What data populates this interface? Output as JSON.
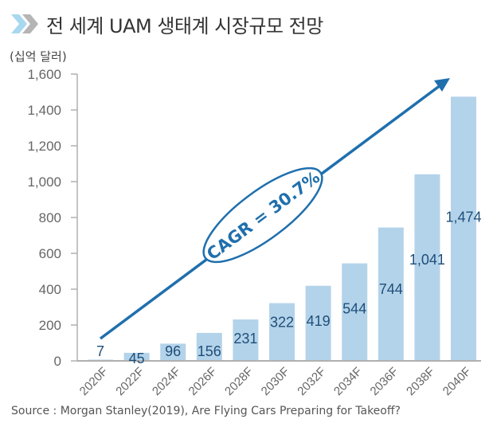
{
  "header": {
    "title": "전 세계 UAM 생태계 시장규모 전망",
    "icon": "double-chevron-right-icon"
  },
  "unit_label": "(십억 달러)",
  "source": "Source : Morgan Stanley(2019), Are Flying Cars Preparing for Takeoff?",
  "colors": {
    "bar": "#b3d3ea",
    "value_text": "#1f4e79",
    "arrow": "#1f6fad",
    "axis": "#b0b0b0",
    "chevron_light": "#a8d8f0",
    "chevron_dark": "#b5b5b5"
  },
  "chart_data": {
    "type": "bar",
    "title": "전 세계 UAM 생태계 시장규모 전망",
    "xlabel": "",
    "ylabel": "(십억 달러)",
    "categories": [
      "2020F",
      "2022F",
      "2024F",
      "2026F",
      "2028F",
      "2030F",
      "2032F",
      "2034F",
      "2036F",
      "2038F",
      "2040F"
    ],
    "values": [
      7,
      45,
      96,
      156,
      231,
      322,
      419,
      544,
      744,
      1041,
      1474
    ],
    "value_labels": [
      "7",
      "45",
      "96",
      "156",
      "231",
      "322",
      "419",
      "544",
      "744",
      "1,041",
      "1,474"
    ],
    "ylim": [
      0,
      1600
    ],
    "yticks": [
      0,
      200,
      400,
      600,
      800,
      1000,
      1200,
      1400,
      1600
    ],
    "ytick_labels": [
      "0",
      "200",
      "400",
      "600",
      "800",
      "1,000",
      "1,200",
      "1,400",
      "1,600"
    ],
    "grid": false,
    "legend": "none",
    "annotations": [
      {
        "type": "trend-arrow",
        "text": "CAGR = 30.7%",
        "from_category": "2020F",
        "to_category": "2040F"
      }
    ]
  }
}
